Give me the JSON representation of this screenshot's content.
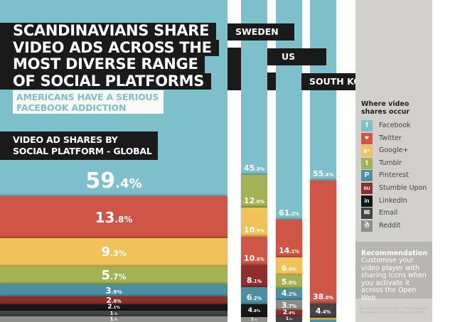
{
  "title_lines": [
    "SCANDINAVIANS SHARE",
    "VIDEO ADS ACROSS THE",
    "MOST DIVERSE RANGE",
    "OF SOCIAL PLATFORMS"
  ],
  "subtitle_lines": [
    "AMERICANS HAVE A SERIOUS",
    "FACEBOOK ADDICTION"
  ],
  "global_heading_lines": [
    "VIDEO AD SHARES BY",
    "SOCIAL PLATFORM - GLOBAL"
  ],
  "colors": {
    "Facebook": "#7dbfcb",
    "Twitter": "#cf5646",
    "Google+": "#f0c25a",
    "Tumblr": "#a3b253",
    "Pinterest": "#4c8fa3",
    "Stumble Upon": "#8e2e2a",
    "LinkedIn": "#161616",
    "Email": "#444444",
    "Reddit": "#8d8d8a"
  },
  "chart_data": [
    {
      "type": "bar",
      "subtype": "stacked-100",
      "title": "VIDEO AD SHARES BY SOCIAL PLATFORM - GLOBAL",
      "categories": [
        "Facebook",
        "Twitter",
        "Google+",
        "Tumblr",
        "Pinterest",
        "Stumble Upon",
        "LinkedIn",
        "Email",
        "Reddit"
      ],
      "values": [
        59.4,
        13.8,
        9.3,
        5.7,
        3.9,
        2.6,
        2.1,
        1,
        1
      ],
      "labels": [
        [
          "59",
          ".4%"
        ],
        [
          "13",
          ".8%"
        ],
        [
          "9",
          ".3%"
        ],
        [
          "5",
          ".7%"
        ],
        [
          "3",
          ".9%"
        ],
        [
          "2",
          ".6%"
        ],
        [
          "2",
          ".1%"
        ],
        [
          "1",
          ".%"
        ],
        [
          "1",
          ".%"
        ]
      ],
      "unit": "%"
    },
    {
      "type": "bar",
      "subtype": "stacked-100",
      "title": "SWEDEN",
      "categories": [
        "Facebook",
        "Tumblr",
        "Google+",
        "Twitter",
        "Stumble Upon",
        "Pinterest",
        "LinkedIn",
        "Reddit"
      ],
      "values": [
        45.3,
        12.0,
        10.9,
        10.6,
        8.1,
        6.2,
        4.8,
        1
      ],
      "labels": [
        [
          "45",
          ".3%"
        ],
        [
          "12",
          ".0%"
        ],
        [
          "10",
          ".9%"
        ],
        [
          "10",
          ".6%"
        ],
        [
          "8",
          ".1%"
        ],
        [
          "6",
          ".2%"
        ],
        [
          "4",
          ".8%"
        ],
        [
          "1",
          ".%"
        ]
      ],
      "unit": "%"
    },
    {
      "type": "bar",
      "subtype": "stacked-100",
      "title": "US",
      "categories": [
        "Facebook",
        "Twitter",
        "Google+",
        "Tumblr",
        "Pinterest",
        "Reddit",
        "Stumble Upon",
        "Email"
      ],
      "values": [
        61.2,
        14.1,
        6.6,
        5.0,
        4.2,
        3.7,
        2.4,
        1
      ],
      "labels": [
        [
          "61",
          ".2%"
        ],
        [
          "14",
          ".1%"
        ],
        [
          "6",
          ".6%"
        ],
        [
          "5",
          ".0%"
        ],
        [
          "4",
          ".2%"
        ],
        [
          "3",
          ".7%"
        ],
        [
          "2",
          ".4%"
        ],
        [
          "1",
          ".%"
        ]
      ],
      "unit": "%"
    },
    {
      "type": "bar",
      "subtype": "stacked-100",
      "title": "SOUTH KOREA",
      "categories": [
        "Facebook",
        "Twitter",
        "Email",
        "Google+",
        "Pinterest"
      ],
      "values": [
        55.4,
        38.8,
        4.4,
        0.7,
        0.7
      ],
      "labels": [
        [
          "55",
          ".4%"
        ],
        [
          "38",
          ".8%"
        ],
        [
          "4",
          ".4%"
        ],
        [
          "",
          ""
        ],
        [
          "",
          ""
        ]
      ],
      "unit": "%"
    }
  ],
  "legend": {
    "title_lines": [
      "Where video",
      "shares occur"
    ],
    "items": [
      {
        "label": "Facebook",
        "glyph": "f",
        "icon": "facebook-icon"
      },
      {
        "label": "Twitter",
        "glyph": "♥",
        "icon": "twitter-icon"
      },
      {
        "label": "Google+",
        "glyph": "g+",
        "icon": "google-plus-icon"
      },
      {
        "label": "Tumblr",
        "glyph": "t",
        "icon": "tumblr-icon"
      },
      {
        "label": "Pinterest",
        "glyph": "P",
        "icon": "pinterest-icon"
      },
      {
        "label": "Stumble Upon",
        "glyph": "su",
        "icon": "stumbleupon-icon"
      },
      {
        "label": "LinkedIn",
        "glyph": "in",
        "icon": "linkedin-icon"
      },
      {
        "label": "Email",
        "glyph": "✉",
        "icon": "email-icon"
      },
      {
        "label": "Reddit",
        "glyph": "☃",
        "icon": "reddit-icon"
      }
    ]
  },
  "recommendation": {
    "title": "Recommendation",
    "text": "Customise your video player with sharing icons when you activate it across the Open Web"
  },
  "source": "Source: Unruly Activate™ - All campaigns, December 23rd 2013 to June 23rd 2014"
}
